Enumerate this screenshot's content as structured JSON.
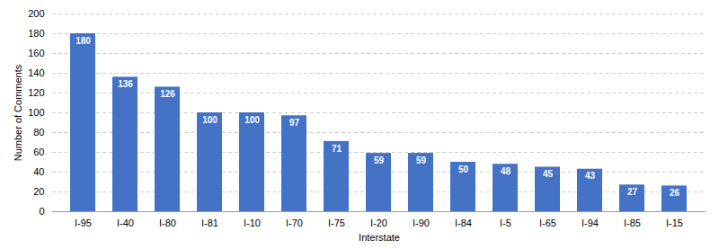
{
  "chart_data": {
    "type": "bar",
    "categories": [
      "I-95",
      "I-40",
      "I-80",
      "I-81",
      "I-10",
      "I-70",
      "I-75",
      "I-20",
      "I-90",
      "I-84",
      "I-5",
      "I-65",
      "I-94",
      "I-85",
      "I-15"
    ],
    "values": [
      180,
      136,
      126,
      100,
      100,
      97,
      71,
      59,
      59,
      50,
      48,
      45,
      43,
      27,
      26
    ],
    "color": "#4472C4",
    "xlabel": "Interstate",
    "ylabel": "Number of Comments",
    "ylim": [
      0,
      200
    ],
    "yticks": [
      0,
      20,
      40,
      60,
      80,
      100,
      120,
      140,
      160,
      180,
      200
    ],
    "grid": true,
    "data_labels": true
  }
}
